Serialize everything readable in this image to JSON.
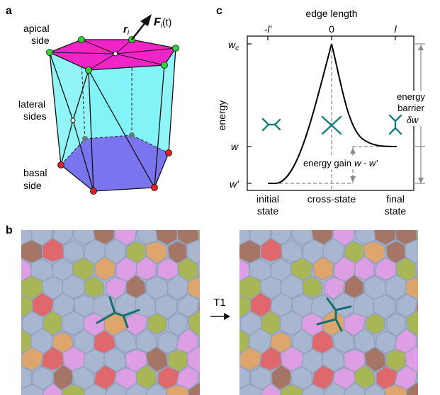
{
  "panel_a": {
    "letter": "a",
    "labels": {
      "apical_1": "apical",
      "apical_2": "side",
      "lateral_1": "lateral",
      "lateral_2": "sides",
      "basal_1": "basal",
      "basal_2": "side",
      "r_main": "r",
      "r_sub": "i",
      "f_main": "F",
      "f_sub": "i",
      "f_arg": "(t)"
    },
    "colors": {
      "apical_face": "#f025c8",
      "lateral_face": "#6cf1f4",
      "basal_face": "#7a74ee",
      "apical_vertex": "#34d23a",
      "basal_vertex": "#e0201e",
      "edge": "#111111"
    }
  },
  "panel_b": {
    "letter": "b",
    "transition_label": "T1",
    "colors": {
      "edge_highlight": "#156f6f",
      "cell_gray": "#a9b6cf",
      "cell_pink": "#e89ae6",
      "cell_brown": "#a56a52",
      "cell_olive": "#a9b640",
      "cell_red": "#e85a5a",
      "cell_orange": "#e8a35a",
      "cell_edge": "#93a2bf"
    }
  },
  "panel_c": {
    "letter": "c",
    "top_axis_title": "edge length",
    "top_ticks": [
      "-l'",
      "0",
      "l"
    ],
    "y_axis_title": "energy",
    "y_ticks": [
      "w_c",
      "w",
      "w'"
    ],
    "bottom_labels": {
      "initial_1": "initial",
      "initial_2": "state",
      "cross": "cross-state",
      "final_1": "final",
      "final_2": "state"
    },
    "annotations": {
      "barrier_1": "energy",
      "barrier_2": "barrier",
      "barrier_3": "δw",
      "gain": "energy gain",
      "gain_expr": "w - w'"
    },
    "colors": {
      "curve": "#000000",
      "glyph": "#148080",
      "dashed": "#888888"
    }
  }
}
